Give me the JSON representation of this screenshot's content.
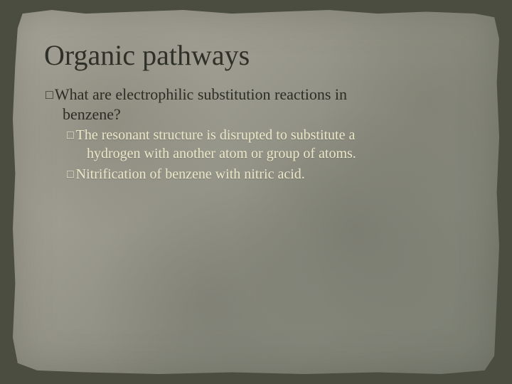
{
  "slide": {
    "title": "Organic pathways",
    "bullet1_line1": "What are electrophilic substitution reactions in",
    "bullet1_line2": "benzene?",
    "sub1_line1": "The resonant structure is disrupted to substitute a",
    "sub1_line2": "hydrogen with another atom or group of atoms.",
    "sub2_line1": "Nitrification of benzene with nitric acid.",
    "colors": {
      "background": "#4a4d3f",
      "paper_light": "#a8a69a",
      "paper_dark": "#7a7d71",
      "title_text": "#2f3028",
      "body_text": "#2b2c24",
      "sub_text": "#ece7c9"
    },
    "fonts": {
      "title_size_pt": 30,
      "body_size_pt": 17,
      "sub_size_pt": 15,
      "family": "Georgia serif"
    },
    "bullet_marker": "□"
  }
}
